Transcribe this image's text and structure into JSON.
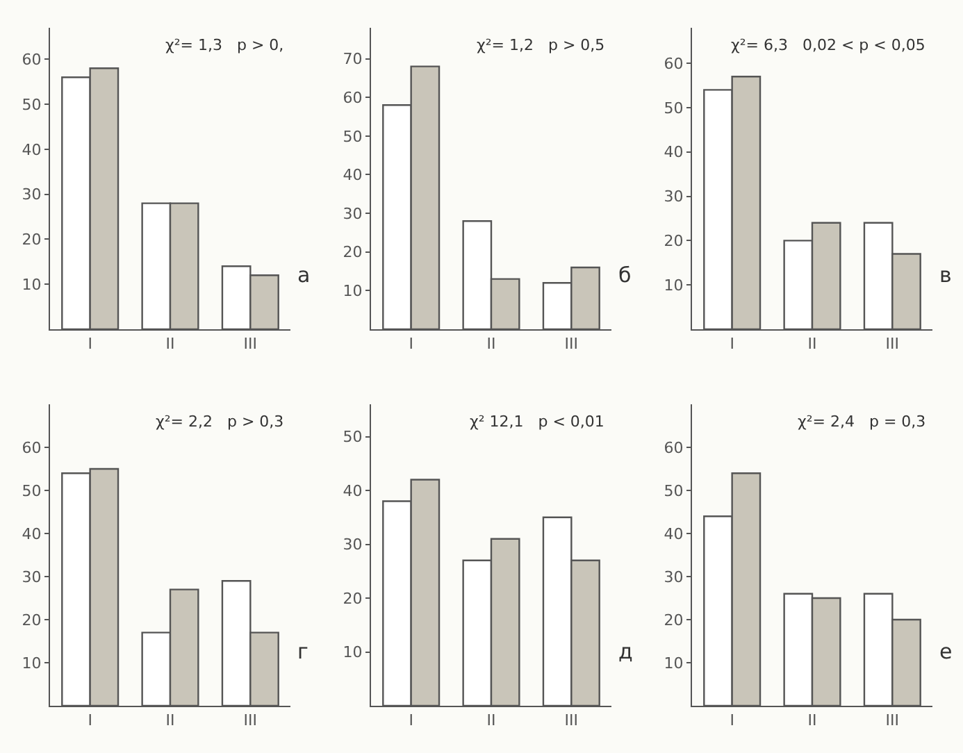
{
  "chart_data": [
    {
      "type": "bar",
      "categories": [
        "I",
        "II",
        "III"
      ],
      "ylim": [
        0,
        67
      ],
      "yticks": [
        10,
        20,
        30,
        40,
        50,
        60
      ],
      "grid": false,
      "annotations": [
        "χ²= 1,3   p > 0,",
        "а"
      ],
      "series": [
        {
          "color": "#ffffff",
          "values": [
            56,
            28,
            14
          ]
        },
        {
          "color": "#c9c5b9",
          "values": [
            58,
            28,
            12
          ]
        }
      ]
    },
    {
      "type": "bar",
      "categories": [
        "I",
        "II",
        "III"
      ],
      "ylim": [
        0,
        78
      ],
      "yticks": [
        10,
        20,
        30,
        40,
        50,
        60,
        70
      ],
      "grid": false,
      "annotations": [
        "χ²= 1,2   p > 0,5",
        "б"
      ],
      "series": [
        {
          "color": "#ffffff",
          "values": [
            58,
            28,
            12
          ]
        },
        {
          "color": "#c9c5b9",
          "values": [
            68,
            13,
            16
          ]
        }
      ]
    },
    {
      "type": "bar",
      "categories": [
        "I",
        "II",
        "III"
      ],
      "ylim": [
        0,
        68
      ],
      "yticks": [
        10,
        20,
        30,
        40,
        50,
        60
      ],
      "grid": false,
      "annotations": [
        "χ²= 6,3   0,02 < p < 0,05",
        "в"
      ],
      "series": [
        {
          "color": "#ffffff",
          "values": [
            54,
            20,
            24
          ]
        },
        {
          "color": "#c9c5b9",
          "values": [
            57,
            24,
            17
          ]
        }
      ]
    },
    {
      "type": "bar",
      "categories": [
        "I",
        "II",
        "III"
      ],
      "ylim": [
        0,
        70
      ],
      "yticks": [
        10,
        20,
        30,
        40,
        50,
        60
      ],
      "grid": false,
      "annotations": [
        "χ²= 2,2   p > 0,3",
        "г"
      ],
      "series": [
        {
          "color": "#ffffff",
          "values": [
            54,
            17,
            29
          ]
        },
        {
          "color": "#c9c5b9",
          "values": [
            55,
            27,
            17
          ]
        }
      ]
    },
    {
      "type": "bar",
      "categories": [
        "I",
        "II",
        "III"
      ],
      "ylim": [
        0,
        56
      ],
      "yticks": [
        10,
        20,
        30,
        40,
        50
      ],
      "grid": false,
      "annotations": [
        "χ² 12,1   p < 0,01",
        "д"
      ],
      "series": [
        {
          "color": "#ffffff",
          "values": [
            38,
            27,
            35
          ]
        },
        {
          "color": "#c9c5b9",
          "values": [
            42,
            31,
            27
          ]
        }
      ]
    },
    {
      "type": "bar",
      "categories": [
        "I",
        "II",
        "III"
      ],
      "ylim": [
        0,
        70
      ],
      "yticks": [
        10,
        20,
        30,
        40,
        50,
        60
      ],
      "grid": false,
      "annotations": [
        "χ²= 2,4   p = 0,3",
        "е"
      ],
      "series": [
        {
          "color": "#ffffff",
          "values": [
            44,
            26,
            26
          ]
        },
        {
          "color": "#c9c5b9",
          "values": [
            54,
            25,
            20
          ]
        }
      ]
    }
  ]
}
